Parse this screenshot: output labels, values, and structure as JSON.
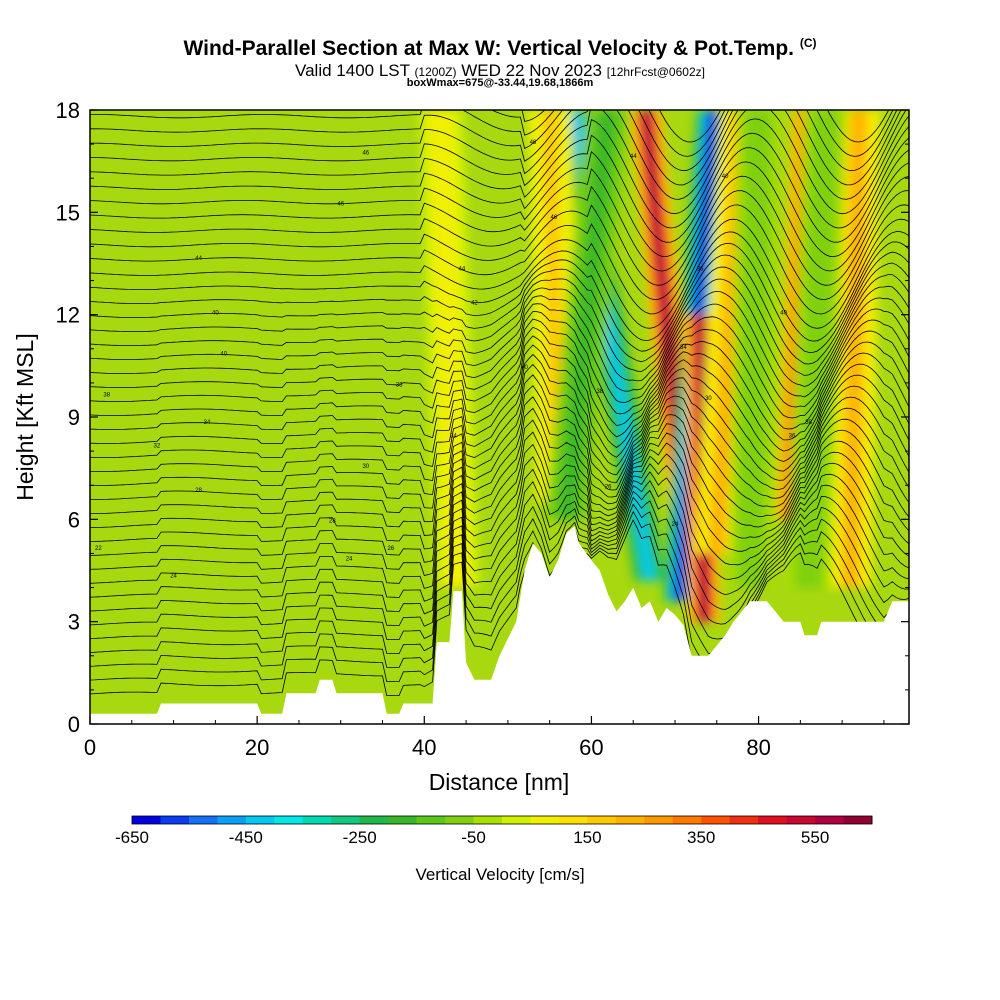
{
  "title": {
    "main": "Wind-Parallel Section at Max W: Vertical Velocity & Pot.Temp.",
    "copyright_mark": "(C)",
    "valid_prefix": "Valid 1400 LST",
    "valid_utc": "(1200Z)",
    "valid_date": "WED 22 Nov 2023",
    "forecast": "[12hrFcst@0602z]",
    "box_info": "boxWmax=675@-33.44,19.68,1866m"
  },
  "chart_data": {
    "type": "heatmap",
    "title": "Wind-Parallel Section at Max W: Vertical Velocity & Pot.Temp.",
    "xlabel": "Distance [nm]",
    "ylabel": "Height [Kft MSL]",
    "xlim": [
      0,
      98
    ],
    "ylim": [
      0,
      18
    ],
    "xticks": [
      0,
      20,
      40,
      60,
      80
    ],
    "yticks": [
      0,
      3,
      6,
      9,
      12,
      15,
      18
    ],
    "xtick_labels": [
      "0",
      "20",
      "40",
      "60",
      "80"
    ],
    "ytick_labels": [
      "0",
      "3",
      "6",
      "9",
      "12",
      "15",
      "18"
    ],
    "colorbar": {
      "label": "Vertical Velocity [cm/s]",
      "min": -650,
      "max": 650,
      "step": 50,
      "tick_values": [
        -650,
        -450,
        -250,
        -50,
        150,
        350,
        550
      ],
      "tick_labels": [
        "-650",
        "-450",
        "-250",
        "-50",
        "150",
        "350",
        "550"
      ],
      "colors": [
        "#0000e0",
        "#0a3cf0",
        "#1470f5",
        "#0aa0f5",
        "#05c8f0",
        "#00e8e8",
        "#00d8b0",
        "#10c880",
        "#20b848",
        "#38b828",
        "#5ac818",
        "#80d010",
        "#a8e000",
        "#d0f000",
        "#f0f000",
        "#ffe000",
        "#ffc800",
        "#ffb000",
        "#ff9800",
        "#ff7800",
        "#ff5000",
        "#f03010",
        "#e01020",
        "#c80830",
        "#b00040",
        "#900030"
      ]
    },
    "velocity_features": [
      {
        "kind": "downdraft",
        "x_top": 58,
        "x_bottom": 67,
        "y_top": 18,
        "y_bottom": 4.2,
        "peak_w": -450
      },
      {
        "kind": "updraft",
        "x_top": 66.5,
        "x_bottom": 71.5,
        "y_top": 18,
        "y_bottom": 5.2,
        "peak_w": 550
      },
      {
        "kind": "downdraft",
        "x_top": 74.5,
        "x_bottom": 70.5,
        "y_top": 18,
        "y_bottom": 3.6,
        "peak_w": -650
      },
      {
        "kind": "updraft",
        "x_top": 73,
        "x_bottom": 73.5,
        "y_top": 12,
        "y_bottom": 3,
        "peak_w": 550
      },
      {
        "kind": "updraft",
        "x_top": 86,
        "x_bottom": 84,
        "y_top": 18,
        "y_bottom": 6,
        "peak_w": 450
      },
      {
        "kind": "weak_updraft",
        "x_top": 78,
        "x_bottom": 75,
        "y_top": 18,
        "y_bottom": 5,
        "peak_w": 200
      },
      {
        "kind": "weak_updraft",
        "x_top": 92,
        "x_bottom": 91,
        "y_top": 18,
        "y_bottom": 4,
        "peak_w": 200
      },
      {
        "kind": "weak_updraft",
        "x_top": 55,
        "x_bottom": 56,
        "y_top": 18,
        "y_bottom": 6.5,
        "peak_w": 150
      },
      {
        "kind": "weak_updraft",
        "x_top": 42,
        "x_bottom": 44,
        "y_top": 18,
        "y_bottom": 4,
        "peak_w": 80
      },
      {
        "kind": "weak_downdraft",
        "x_top": 62,
        "x_bottom": 57,
        "y_top": 18,
        "y_bottom": 6,
        "peak_w": -200
      },
      {
        "kind": "weak_downdraft",
        "x_top": 88,
        "x_bottom": 86,
        "y_top": 18,
        "y_bottom": 4,
        "peak_w": -100
      },
      {
        "kind": "weak_downdraft",
        "x_top": 80,
        "x_bottom": 79,
        "y_top": 18,
        "y_bottom": 4,
        "peak_w": -80
      }
    ],
    "terrain": [
      [
        0,
        0.3
      ],
      [
        8,
        0.3
      ],
      [
        8.5,
        0.6
      ],
      [
        20,
        0.6
      ],
      [
        20.5,
        0.3
      ],
      [
        23,
        0.3
      ],
      [
        23.5,
        0.9
      ],
      [
        27,
        0.9
      ],
      [
        27.5,
        1.3
      ],
      [
        29,
        1.3
      ],
      [
        29.5,
        0.9
      ],
      [
        35,
        0.9
      ],
      [
        35.5,
        0.3
      ],
      [
        37,
        0.3
      ],
      [
        37.5,
        0.6
      ],
      [
        41,
        0.6
      ],
      [
        41.5,
        2.4
      ],
      [
        43,
        2.4
      ],
      [
        43.5,
        3.9
      ],
      [
        44.5,
        3.9
      ],
      [
        45,
        1.8
      ],
      [
        46,
        1.3
      ],
      [
        48,
        1.3
      ],
      [
        49,
        2.0
      ],
      [
        51,
        3.0
      ],
      [
        52,
        4.5
      ],
      [
        53,
        5.3
      ],
      [
        54,
        5.0
      ],
      [
        55,
        4.3
      ],
      [
        56,
        4.8
      ],
      [
        57,
        5.6
      ],
      [
        58,
        5.8
      ],
      [
        58.5,
        5.3
      ],
      [
        60,
        4.8
      ],
      [
        61,
        4.5
      ],
      [
        62,
        3.8
      ],
      [
        63,
        3.3
      ],
      [
        64,
        3.6
      ],
      [
        65,
        4.0
      ],
      [
        66,
        3.4
      ],
      [
        67,
        3.6
      ],
      [
        68,
        3.0
      ],
      [
        69,
        3.4
      ],
      [
        70,
        3.2
      ],
      [
        71,
        2.9
      ],
      [
        72,
        2.0
      ],
      [
        74,
        2.0
      ],
      [
        75,
        2.3
      ],
      [
        76,
        2.6
      ],
      [
        77,
        3.0
      ],
      [
        78,
        3.3
      ],
      [
        79,
        3.6
      ],
      [
        81,
        3.6
      ],
      [
        82,
        3.3
      ],
      [
        83,
        3.0
      ],
      [
        85,
        3.0
      ],
      [
        85.5,
        2.6
      ],
      [
        87,
        2.6
      ],
      [
        87.5,
        3.0
      ],
      [
        95,
        3.0
      ],
      [
        95.5,
        3.3
      ],
      [
        96,
        3.6
      ],
      [
        98,
        3.6
      ]
    ],
    "contour_labels": [
      {
        "x": 33,
        "y": 16.7,
        "text": "46"
      },
      {
        "x": 30,
        "y": 15.2,
        "text": "46"
      },
      {
        "x": 13,
        "y": 13.6,
        "text": "44"
      },
      {
        "x": 44.5,
        "y": 13.3,
        "text": "44"
      },
      {
        "x": 15,
        "y": 12.0,
        "text": "40"
      },
      {
        "x": 16,
        "y": 10.8,
        "text": "40"
      },
      {
        "x": 37,
        "y": 9.9,
        "text": "38"
      },
      {
        "x": 2,
        "y": 9.6,
        "text": "38"
      },
      {
        "x": 14,
        "y": 8.8,
        "text": "34"
      },
      {
        "x": 43.5,
        "y": 8.4,
        "text": "34"
      },
      {
        "x": 8,
        "y": 8.1,
        "text": "32"
      },
      {
        "x": 33,
        "y": 7.5,
        "text": "30"
      },
      {
        "x": 13,
        "y": 6.8,
        "text": "28"
      },
      {
        "x": 29,
        "y": 5.9,
        "text": "28"
      },
      {
        "x": 36,
        "y": 5.1,
        "text": "26"
      },
      {
        "x": 1,
        "y": 5.1,
        "text": "22"
      },
      {
        "x": 31,
        "y": 4.8,
        "text": "24"
      },
      {
        "x": 10,
        "y": 4.3,
        "text": "24"
      },
      {
        "x": 53,
        "y": 17.0,
        "text": "46"
      },
      {
        "x": 55.5,
        "y": 14.8,
        "text": "46"
      },
      {
        "x": 46,
        "y": 12.3,
        "text": "42"
      },
      {
        "x": 52,
        "y": 10.4,
        "text": "40"
      },
      {
        "x": 65,
        "y": 16.6,
        "text": "44"
      },
      {
        "x": 76,
        "y": 16.0,
        "text": "40"
      },
      {
        "x": 73,
        "y": 13.3,
        "text": "36"
      },
      {
        "x": 61,
        "y": 9.7,
        "text": "38"
      },
      {
        "x": 71,
        "y": 11.0,
        "text": "34"
      },
      {
        "x": 74,
        "y": 9.5,
        "text": "30"
      },
      {
        "x": 83,
        "y": 12.0,
        "text": "40"
      },
      {
        "x": 86,
        "y": 8.8,
        "text": "38"
      },
      {
        "x": 84,
        "y": 8.4,
        "text": "36"
      },
      {
        "x": 70,
        "y": 5.8,
        "text": "24"
      },
      {
        "x": 62,
        "y": 6.9,
        "text": "26"
      }
    ]
  }
}
